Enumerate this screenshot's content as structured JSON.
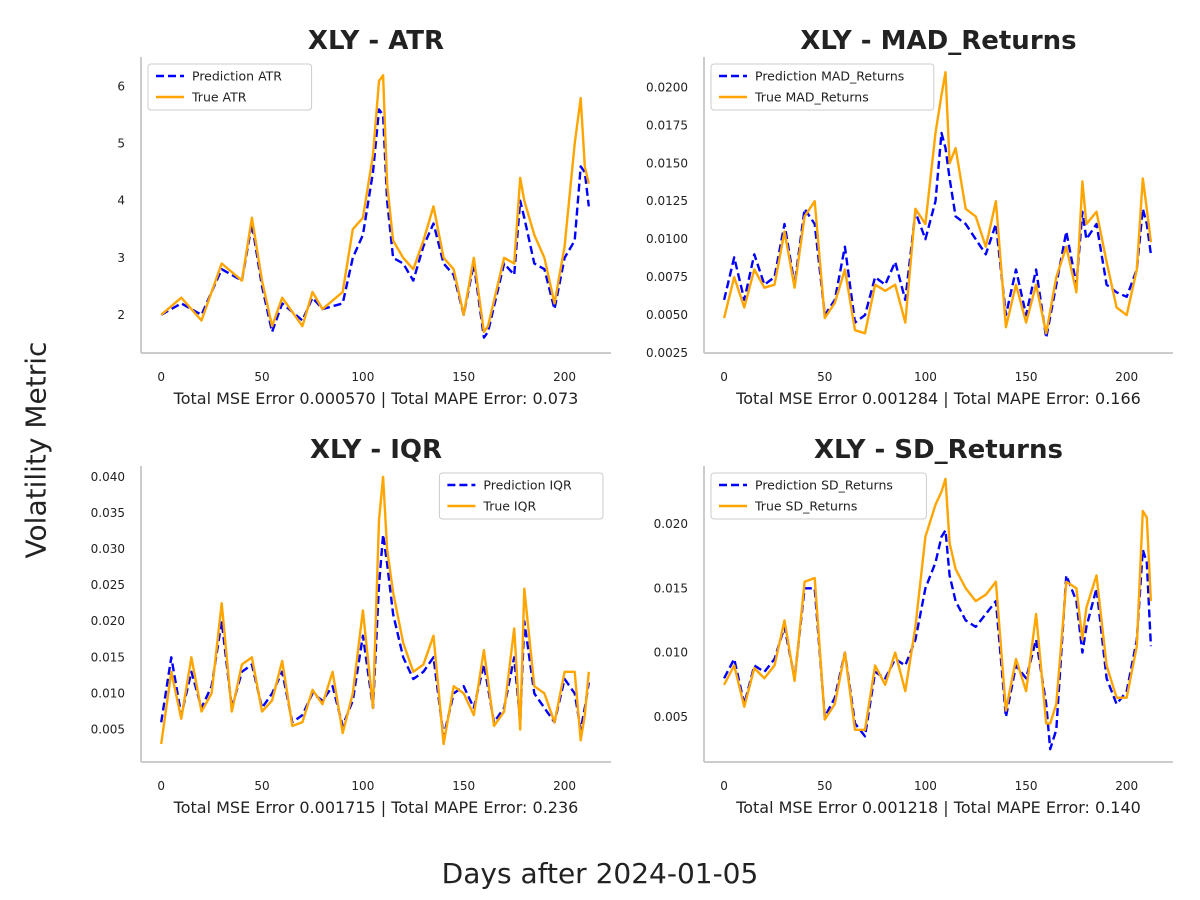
{
  "figure": {
    "xlabel": "Days after 2024-01-05",
    "ylabel": "Volatility Metric"
  },
  "colors": {
    "prediction": "#0000ff",
    "true": "#ffa500",
    "axis": "#cccccc",
    "text": "#222222"
  },
  "chart_data": [
    {
      "type": "line",
      "title": "XLY - ATR",
      "xlabel": "Total MSE Error 0.000570 | Total MAPE Error: 0.073",
      "xlim": [
        -10,
        223
      ],
      "ylim": [
        1.33,
        6.52
      ],
      "xticks": [
        0,
        50,
        100,
        150,
        200
      ],
      "yticks": [
        2,
        3,
        4,
        5,
        6
      ],
      "legend": "top-left",
      "x": [
        0,
        10,
        20,
        30,
        40,
        45,
        50,
        55,
        60,
        70,
        75,
        80,
        90,
        95,
        100,
        105,
        108,
        110,
        112,
        115,
        120,
        125,
        130,
        135,
        140,
        145,
        150,
        155,
        160,
        162,
        170,
        175,
        178,
        180,
        185,
        190,
        195,
        200,
        205,
        208,
        210,
        212
      ],
      "series": [
        {
          "name": "Prediction ATR",
          "values": [
            2.0,
            2.2,
            2.0,
            2.8,
            2.6,
            3.6,
            2.5,
            1.7,
            2.2,
            1.9,
            2.3,
            2.1,
            2.2,
            3.0,
            3.4,
            4.5,
            5.6,
            5.5,
            4.0,
            3.0,
            2.9,
            2.6,
            3.2,
            3.6,
            2.9,
            2.7,
            2.0,
            2.9,
            1.6,
            1.7,
            2.9,
            2.7,
            4.0,
            3.7,
            2.9,
            2.8,
            2.1,
            3.0,
            3.3,
            4.6,
            4.5,
            3.9
          ]
        },
        {
          "name": "True ATR",
          "values": [
            2.0,
            2.3,
            1.9,
            2.9,
            2.6,
            3.7,
            2.6,
            1.8,
            2.3,
            1.8,
            2.4,
            2.1,
            2.4,
            3.5,
            3.7,
            4.8,
            6.1,
            6.2,
            4.3,
            3.3,
            3.0,
            2.8,
            3.3,
            3.9,
            3.0,
            2.8,
            2.0,
            3.0,
            1.7,
            1.8,
            3.0,
            2.9,
            4.4,
            4.0,
            3.4,
            3.0,
            2.2,
            3.2,
            5.0,
            5.8,
            4.6,
            4.3
          ]
        }
      ]
    },
    {
      "type": "line",
      "title": "XLY - MAD_Returns",
      "xlabel": "Total MSE Error 0.001284 | Total MAPE Error: 0.166",
      "xlim": [
        -10,
        223
      ],
      "ylim": [
        0.0025,
        0.022
      ],
      "xticks": [
        0,
        50,
        100,
        150,
        200
      ],
      "yticks": [
        0.0025,
        0.005,
        0.0075,
        0.01,
        0.0125,
        0.015,
        0.0175,
        0.02
      ],
      "legend": "top-left",
      "x": [
        0,
        5,
        10,
        15,
        20,
        25,
        30,
        35,
        40,
        45,
        50,
        55,
        60,
        65,
        70,
        75,
        80,
        85,
        90,
        95,
        100,
        105,
        108,
        110,
        112,
        115,
        120,
        125,
        130,
        135,
        140,
        145,
        150,
        155,
        160,
        165,
        170,
        175,
        178,
        180,
        185,
        190,
        195,
        200,
        205,
        208,
        210,
        212
      ],
      "series": [
        {
          "name": "Prediction MAD_Returns",
          "values": [
            0.006,
            0.0088,
            0.006,
            0.009,
            0.007,
            0.0075,
            0.011,
            0.007,
            0.012,
            0.011,
            0.005,
            0.006,
            0.0095,
            0.0045,
            0.005,
            0.0075,
            0.007,
            0.0085,
            0.006,
            0.0118,
            0.01,
            0.0125,
            0.017,
            0.016,
            0.014,
            0.0115,
            0.011,
            0.01,
            0.009,
            0.011,
            0.005,
            0.008,
            0.005,
            0.008,
            0.0035,
            0.007,
            0.0105,
            0.007,
            0.0118,
            0.01,
            0.011,
            0.007,
            0.0065,
            0.0062,
            0.008,
            0.012,
            0.011,
            0.009
          ]
        },
        {
          "name": "True MAD_Returns",
          "values": [
            0.0048,
            0.0075,
            0.0055,
            0.008,
            0.0068,
            0.007,
            0.0105,
            0.0068,
            0.0115,
            0.0125,
            0.0048,
            0.0058,
            0.008,
            0.004,
            0.0038,
            0.007,
            0.0066,
            0.007,
            0.0045,
            0.012,
            0.011,
            0.017,
            0.0195,
            0.021,
            0.015,
            0.016,
            0.012,
            0.0115,
            0.0095,
            0.0125,
            0.0042,
            0.007,
            0.0045,
            0.007,
            0.0038,
            0.0075,
            0.0095,
            0.0065,
            0.0138,
            0.011,
            0.0118,
            0.0085,
            0.0055,
            0.005,
            0.008,
            0.014,
            0.012,
            0.0098
          ]
        }
      ]
    },
    {
      "type": "line",
      "title": "XLY - IQR",
      "xlabel": "Total MSE Error 0.001715 | Total MAPE Error: 0.236",
      "xlim": [
        -10,
        223
      ],
      "ylim": [
        0.0005,
        0.0415
      ],
      "xticks": [
        0,
        50,
        100,
        150,
        200
      ],
      "yticks": [
        0.005,
        0.01,
        0.015,
        0.02,
        0.025,
        0.03,
        0.035,
        0.04
      ],
      "legend": "top-right",
      "x": [
        0,
        5,
        10,
        15,
        20,
        25,
        30,
        35,
        40,
        45,
        50,
        55,
        60,
        65,
        70,
        75,
        80,
        85,
        90,
        95,
        100,
        105,
        108,
        110,
        112,
        115,
        120,
        125,
        130,
        135,
        140,
        145,
        150,
        155,
        160,
        165,
        170,
        175,
        178,
        180,
        185,
        190,
        195,
        200,
        205,
        208,
        210,
        212
      ],
      "series": [
        {
          "name": "Prediction IQR",
          "values": [
            0.006,
            0.015,
            0.007,
            0.013,
            0.008,
            0.011,
            0.02,
            0.008,
            0.013,
            0.014,
            0.008,
            0.01,
            0.013,
            0.006,
            0.007,
            0.01,
            0.009,
            0.011,
            0.0055,
            0.009,
            0.018,
            0.008,
            0.025,
            0.032,
            0.028,
            0.021,
            0.015,
            0.012,
            0.013,
            0.015,
            0.004,
            0.01,
            0.011,
            0.008,
            0.014,
            0.006,
            0.008,
            0.015,
            0.006,
            0.02,
            0.01,
            0.008,
            0.006,
            0.012,
            0.01,
            0.005,
            0.008,
            0.0115
          ]
        },
        {
          "name": "True IQR",
          "values": [
            0.003,
            0.013,
            0.0065,
            0.015,
            0.0075,
            0.01,
            0.0225,
            0.0075,
            0.014,
            0.015,
            0.0075,
            0.009,
            0.0145,
            0.0055,
            0.006,
            0.0105,
            0.0085,
            0.013,
            0.0045,
            0.01,
            0.0215,
            0.008,
            0.034,
            0.04,
            0.03,
            0.024,
            0.017,
            0.013,
            0.014,
            0.018,
            0.003,
            0.011,
            0.01,
            0.007,
            0.016,
            0.0055,
            0.0075,
            0.019,
            0.005,
            0.0245,
            0.011,
            0.01,
            0.006,
            0.013,
            0.013,
            0.0035,
            0.007,
            0.013
          ]
        }
      ]
    },
    {
      "type": "line",
      "title": "XLY - SD_Returns",
      "xlabel": "Total MSE Error 0.001218 | Total MAPE Error: 0.140",
      "xlim": [
        -10,
        223
      ],
      "ylim": [
        0.0015,
        0.0245
      ],
      "xticks": [
        0,
        50,
        100,
        150,
        200
      ],
      "yticks": [
        0.005,
        0.01,
        0.015,
        0.02
      ],
      "legend": "top-left",
      "x": [
        0,
        5,
        10,
        15,
        20,
        25,
        30,
        35,
        40,
        45,
        50,
        55,
        60,
        65,
        70,
        75,
        80,
        85,
        90,
        95,
        100,
        105,
        108,
        110,
        112,
        115,
        120,
        125,
        130,
        135,
        140,
        145,
        150,
        155,
        160,
        162,
        165,
        170,
        175,
        178,
        180,
        185,
        190,
        195,
        200,
        205,
        208,
        210,
        212
      ],
      "series": [
        {
          "name": "Prediction SD_Returns",
          "values": [
            0.008,
            0.0095,
            0.006,
            0.009,
            0.0085,
            0.0095,
            0.012,
            0.008,
            0.015,
            0.015,
            0.005,
            0.0065,
            0.01,
            0.0045,
            0.0035,
            0.0085,
            0.008,
            0.0095,
            0.009,
            0.011,
            0.015,
            0.017,
            0.019,
            0.0195,
            0.016,
            0.014,
            0.0125,
            0.012,
            0.013,
            0.014,
            0.005,
            0.009,
            0.008,
            0.011,
            0.006,
            0.0025,
            0.004,
            0.016,
            0.014,
            0.01,
            0.012,
            0.015,
            0.008,
            0.006,
            0.007,
            0.011,
            0.018,
            0.017,
            0.0105
          ]
        },
        {
          "name": "True SD_Returns",
          "values": [
            0.0075,
            0.009,
            0.0058,
            0.0088,
            0.008,
            0.009,
            0.0125,
            0.0078,
            0.0155,
            0.0158,
            0.0048,
            0.006,
            0.01,
            0.004,
            0.004,
            0.009,
            0.0075,
            0.01,
            0.007,
            0.012,
            0.019,
            0.0215,
            0.0225,
            0.0235,
            0.0185,
            0.0165,
            0.015,
            0.014,
            0.0145,
            0.0155,
            0.0055,
            0.0095,
            0.007,
            0.013,
            0.0045,
            0.0045,
            0.006,
            0.0155,
            0.015,
            0.011,
            0.0135,
            0.016,
            0.009,
            0.0065,
            0.0065,
            0.0105,
            0.021,
            0.0205,
            0.014
          ]
        }
      ]
    }
  ]
}
